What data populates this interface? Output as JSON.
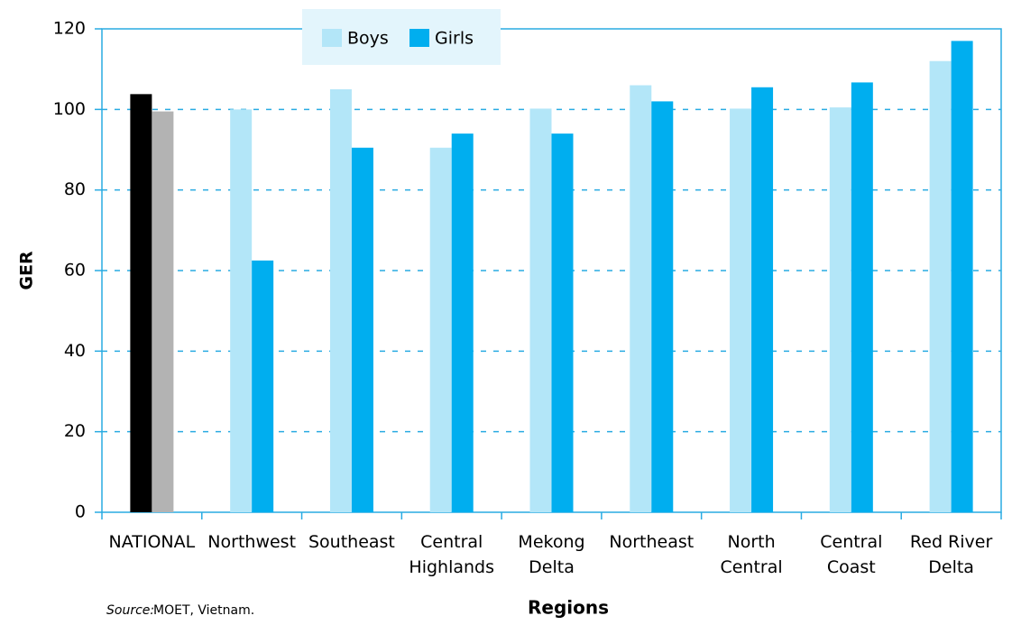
{
  "chart_data": {
    "type": "bar",
    "y_label": "GER",
    "x_label": "Regions",
    "source_label": "Source:",
    "source": "MOET, Vietnam.",
    "categories": [
      "NATIONAL",
      "Northwest",
      "Southeast",
      "Central\nHighlands",
      "Mekong\nDelta",
      "Northeast",
      "North\nCentral",
      "Central\nCoast",
      "Red River\nDelta"
    ],
    "series": [
      {
        "name": "Boys",
        "color": "#b3e6f8",
        "values": [
          103.8,
          100,
          105,
          90.5,
          100.2,
          106,
          100.2,
          100.5,
          112
        ],
        "colors": [
          "#000000",
          "#b3e6f8",
          "#b3e6f8",
          "#b3e6f8",
          "#b3e6f8",
          "#b3e6f8",
          "#b3e6f8",
          "#b3e6f8",
          "#b3e6f8"
        ]
      },
      {
        "name": "Girls",
        "color": "#00aeef",
        "values": [
          99.5,
          62.5,
          90.5,
          94,
          94,
          102,
          105.5,
          106.7,
          117
        ],
        "colors": [
          "#b3b3b3",
          "#00aeef",
          "#00aeef",
          "#00aeef",
          "#00aeef",
          "#00aeef",
          "#00aeef",
          "#00aeef",
          "#00aeef"
        ]
      }
    ],
    "ylim": [
      0,
      120
    ],
    "yticks": [
      0,
      20,
      40,
      60,
      80,
      100,
      120
    ],
    "grid": true
  }
}
